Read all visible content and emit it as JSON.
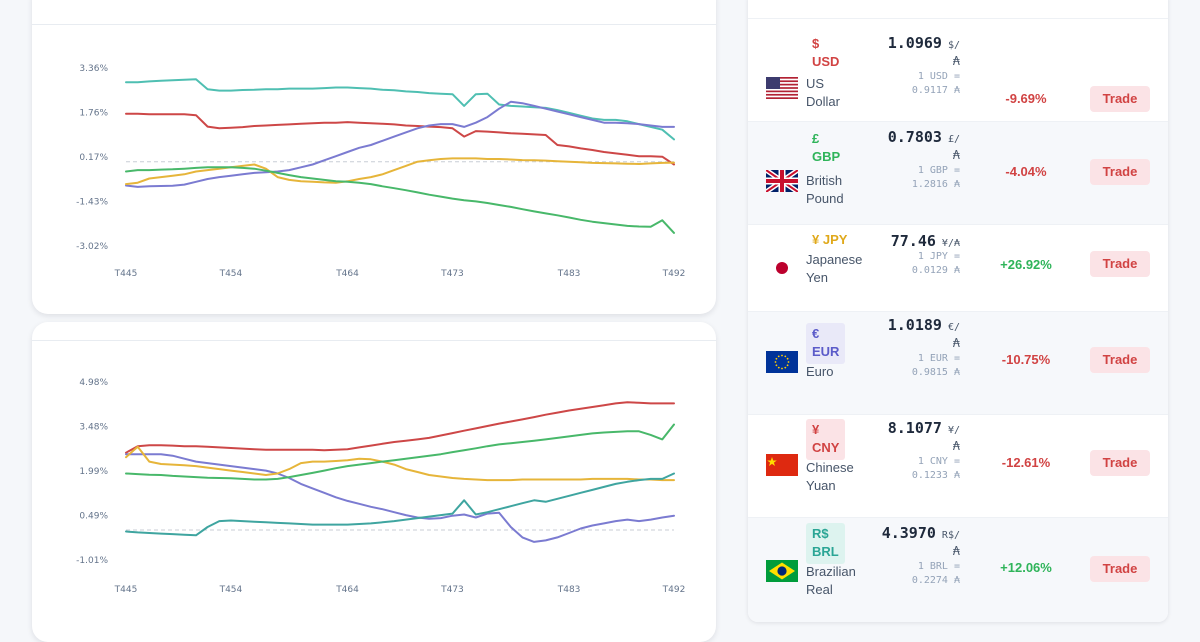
{
  "chart_data": [
    {
      "type": "line",
      "x_ticks": [
        "T445",
        "T454",
        "T464",
        "T473",
        "T483",
        "T492"
      ],
      "x": [
        445,
        446,
        447,
        448,
        449,
        450,
        451,
        452,
        453,
        454,
        455,
        456,
        457,
        458,
        459,
        460,
        461,
        462,
        463,
        464,
        465,
        466,
        467,
        468,
        469,
        470,
        471,
        472,
        473,
        474,
        475,
        476,
        477,
        478,
        479,
        480,
        481,
        482,
        483,
        484,
        485,
        486,
        487,
        488,
        489,
        490,
        491,
        492
      ],
      "y_ticks": [
        "3.36%",
        "1.76%",
        "0.17%",
        "-1.43%",
        "-3.02%"
      ],
      "ylim": [
        -3.02,
        3.36
      ],
      "baseline": 0.0,
      "series": [
        {
          "color": "#4fbfb2",
          "values": [
            2.85,
            2.85,
            2.88,
            2.9,
            2.92,
            2.94,
            2.96,
            2.6,
            2.55,
            2.55,
            2.57,
            2.58,
            2.6,
            2.6,
            2.62,
            2.62,
            2.62,
            2.64,
            2.66,
            2.66,
            2.64,
            2.62,
            2.58,
            2.56,
            2.52,
            2.5,
            2.46,
            2.44,
            2.42,
            2.0,
            2.42,
            2.44,
            2.05,
            2.0,
            1.98,
            1.95,
            1.93,
            1.85,
            1.75,
            1.65,
            1.55,
            1.5,
            1.5,
            1.45,
            1.35,
            1.25,
            1.15,
            0.8
          ]
        },
        {
          "color": "#cd4747",
          "values": [
            1.72,
            1.72,
            1.7,
            1.7,
            1.7,
            1.7,
            1.67,
            1.26,
            1.2,
            1.22,
            1.24,
            1.28,
            1.3,
            1.32,
            1.34,
            1.36,
            1.38,
            1.4,
            1.4,
            1.42,
            1.4,
            1.38,
            1.36,
            1.34,
            1.3,
            1.28,
            1.26,
            1.24,
            1.2,
            0.9,
            1.1,
            1.08,
            1.05,
            1.02,
            1.0,
            0.98,
            0.96,
            0.6,
            0.55,
            0.48,
            0.42,
            0.35,
            0.3,
            0.25,
            0.2,
            0.2,
            0.18,
            -0.1
          ]
        },
        {
          "color": "#7b7bd1",
          "values": [
            -0.85,
            -0.9,
            -0.88,
            -0.87,
            -0.86,
            -0.82,
            -0.72,
            -0.62,
            -0.55,
            -0.5,
            -0.45,
            -0.4,
            -0.38,
            -0.35,
            -0.3,
            -0.2,
            -0.1,
            0.05,
            0.2,
            0.35,
            0.5,
            0.6,
            0.75,
            0.9,
            1.05,
            1.2,
            1.3,
            1.35,
            1.35,
            1.25,
            1.4,
            1.6,
            1.9,
            2.15,
            2.1,
            2.0,
            1.9,
            1.8,
            1.7,
            1.6,
            1.5,
            1.4,
            1.4,
            1.38,
            1.35,
            1.3,
            1.25,
            1.25
          ]
        },
        {
          "color": "#e6b53a",
          "values": [
            -0.8,
            -0.75,
            -0.6,
            -0.55,
            -0.5,
            -0.45,
            -0.35,
            -0.3,
            -0.25,
            -0.2,
            -0.15,
            -0.1,
            -0.25,
            -0.55,
            -0.65,
            -0.7,
            -0.72,
            -0.74,
            -0.75,
            -0.7,
            -0.62,
            -0.55,
            -0.45,
            -0.3,
            -0.15,
            0.0,
            0.05,
            0.1,
            0.12,
            0.12,
            0.12,
            0.1,
            0.1,
            0.08,
            0.06,
            0.05,
            0.04,
            0.02,
            0.0,
            -0.02,
            -0.04,
            -0.05,
            -0.06,
            -0.07,
            -0.08,
            -0.06,
            -0.04,
            -0.03
          ]
        },
        {
          "color": "#48b86a",
          "values": [
            -0.35,
            -0.3,
            -0.3,
            -0.28,
            -0.27,
            -0.25,
            -0.22,
            -0.2,
            -0.2,
            -0.2,
            -0.22,
            -0.25,
            -0.32,
            -0.4,
            -0.48,
            -0.55,
            -0.6,
            -0.65,
            -0.7,
            -0.72,
            -0.75,
            -0.8,
            -0.88,
            -0.95,
            -1.02,
            -1.1,
            -1.18,
            -1.25,
            -1.32,
            -1.38,
            -1.42,
            -1.48,
            -1.55,
            -1.62,
            -1.7,
            -1.78,
            -1.85,
            -1.92,
            -2.0,
            -2.08,
            -2.15,
            -2.2,
            -2.25,
            -2.3,
            -2.32,
            -2.33,
            -2.1,
            -2.55
          ]
        }
      ]
    },
    {
      "type": "line",
      "x_ticks": [
        "T445",
        "T454",
        "T464",
        "T473",
        "T483",
        "T492"
      ],
      "x": [
        445,
        446,
        447,
        448,
        449,
        450,
        451,
        452,
        453,
        454,
        455,
        456,
        457,
        458,
        459,
        460,
        461,
        462,
        463,
        464,
        465,
        466,
        467,
        468,
        469,
        470,
        471,
        472,
        473,
        474,
        475,
        476,
        477,
        478,
        479,
        480,
        481,
        482,
        483,
        484,
        485,
        486,
        487,
        488,
        489,
        490,
        491,
        492
      ],
      "y_ticks": [
        "4.98%",
        "3.48%",
        "1.99%",
        "0.49%",
        "-1.01%"
      ],
      "ylim": [
        -1.01,
        4.98
      ],
      "baseline": 0.0,
      "series": [
        {
          "color": "#cd4747",
          "values": [
            2.6,
            2.82,
            2.85,
            2.85,
            2.84,
            2.82,
            2.82,
            2.8,
            2.78,
            2.76,
            2.74,
            2.72,
            2.7,
            2.7,
            2.7,
            2.7,
            2.7,
            2.68,
            2.7,
            2.72,
            2.78,
            2.84,
            2.9,
            2.96,
            3.0,
            3.05,
            3.1,
            3.18,
            3.26,
            3.34,
            3.42,
            3.5,
            3.58,
            3.65,
            3.72,
            3.8,
            3.88,
            3.95,
            4.02,
            4.08,
            4.14,
            4.2,
            4.26,
            4.3,
            4.28,
            4.26,
            4.26,
            4.26
          ]
        },
        {
          "color": "#7b7bd1",
          "values": [
            2.55,
            2.55,
            2.55,
            2.55,
            2.5,
            2.4,
            2.3,
            2.25,
            2.2,
            2.15,
            2.1,
            2.05,
            2.0,
            1.9,
            1.75,
            1.55,
            1.4,
            1.25,
            1.1,
            0.98,
            0.88,
            0.78,
            0.7,
            0.6,
            0.5,
            0.42,
            0.38,
            0.4,
            0.48,
            0.52,
            0.42,
            0.55,
            0.58,
            0.1,
            -0.25,
            -0.4,
            -0.35,
            -0.25,
            -0.1,
            0.05,
            0.15,
            0.22,
            0.3,
            0.35,
            0.3,
            0.35,
            0.42,
            0.48
          ]
        },
        {
          "color": "#e6b53a",
          "values": [
            2.45,
            2.8,
            2.3,
            2.22,
            2.2,
            2.18,
            2.15,
            2.1,
            2.05,
            2.0,
            1.95,
            1.9,
            1.85,
            1.9,
            2.05,
            2.25,
            2.3,
            2.3,
            2.32,
            2.35,
            2.4,
            2.38,
            2.3,
            2.2,
            2.05,
            1.95,
            1.85,
            1.8,
            1.75,
            1.72,
            1.7,
            1.68,
            1.68,
            1.68,
            1.7,
            1.7,
            1.7,
            1.7,
            1.7,
            1.7,
            1.72,
            1.72,
            1.72,
            1.72,
            1.7,
            1.7,
            1.68,
            1.68
          ]
        },
        {
          "color": "#48b86a",
          "values": [
            1.9,
            1.88,
            1.86,
            1.85,
            1.82,
            1.8,
            1.78,
            1.76,
            1.75,
            1.74,
            1.72,
            1.7,
            1.7,
            1.72,
            1.78,
            1.85,
            1.92,
            2.0,
            2.08,
            2.15,
            2.2,
            2.25,
            2.3,
            2.35,
            2.4,
            2.45,
            2.5,
            2.55,
            2.62,
            2.68,
            2.75,
            2.82,
            2.88,
            2.92,
            2.96,
            3.0,
            3.05,
            3.1,
            3.15,
            3.2,
            3.25,
            3.28,
            3.3,
            3.32,
            3.32,
            3.2,
            3.05,
            3.55
          ]
        },
        {
          "color": "#3fa5a0",
          "values": [
            -0.05,
            -0.08,
            -0.1,
            -0.12,
            -0.14,
            -0.16,
            -0.18,
            0.1,
            0.3,
            0.32,
            0.3,
            0.28,
            0.26,
            0.24,
            0.22,
            0.2,
            0.18,
            0.18,
            0.18,
            0.18,
            0.2,
            0.22,
            0.26,
            0.3,
            0.35,
            0.4,
            0.45,
            0.5,
            0.55,
            1.0,
            0.52,
            0.6,
            0.7,
            0.8,
            0.9,
            1.0,
            0.95,
            1.05,
            1.15,
            1.25,
            1.35,
            1.45,
            1.55,
            1.62,
            1.68,
            1.72,
            1.72,
            1.9
          ]
        }
      ]
    }
  ],
  "currencies": [
    {
      "symbol": "$",
      "code": "USD",
      "name1": "US",
      "name2": "Dollar",
      "rate": "1.0969",
      "unit": "$/",
      "unit2": "₳",
      "conv1": "1 USD =",
      "conv2": "0.9117 ₳",
      "change": "-9.69%",
      "trade": "Trade",
      "code_color": "#d14343",
      "badge_bg": "#ffffff",
      "change_color": "#d14343",
      "flag": "us"
    },
    {
      "symbol": "£",
      "code": "GBP",
      "name1": "British",
      "name2": "Pound",
      "rate": "0.7803",
      "unit": "£/",
      "unit2": "₳",
      "conv1": "1 GBP =",
      "conv2": "1.2816 ₳",
      "change": "-4.04%",
      "trade": "Trade",
      "code_color": "#2fb45a",
      "badge_bg": "#f6f8fb",
      "change_color": "#d14343",
      "flag": "gb"
    },
    {
      "symbol": "¥",
      "code": "JPY",
      "name1": "Japanese",
      "name2": "Yen",
      "rate": "77.46",
      "unit": "¥/₳",
      "unit2": "",
      "conv1": "1 JPY =",
      "conv2": "0.0129 ₳",
      "change": "+26.92%",
      "trade": "Trade",
      "code_color": "#e0a91b",
      "badge_bg": "#ffffff",
      "change_color": "#2fb45a",
      "flag": "jp"
    },
    {
      "symbol": "€",
      "code": "EUR",
      "name1": "Euro",
      "name2": "",
      "rate": "1.0189",
      "unit": "€/",
      "unit2": "₳",
      "conv1": "1 EUR =",
      "conv2": "0.9815 ₳",
      "change": "-10.75%",
      "trade": "Trade",
      "code_color": "#5b5bc9",
      "badge_bg": "#e9e9f8",
      "change_color": "#d14343",
      "flag": "eu"
    },
    {
      "symbol": "¥",
      "code": "CNY",
      "name1": "Chinese",
      "name2": "Yuan",
      "rate": "8.1077",
      "unit": "¥/",
      "unit2": "₳",
      "conv1": "1 CNY =",
      "conv2": "0.1233 ₳",
      "change": "-12.61%",
      "trade": "Trade",
      "code_color": "#d14343",
      "badge_bg": "#fbe3e6",
      "change_color": "#d14343",
      "flag": "cn"
    },
    {
      "symbol": "R$",
      "code": "BRL",
      "name1": "Brazilian",
      "name2": "Real",
      "rate": "4.3970",
      "unit": "R$/",
      "unit2": "₳",
      "conv1": "1 BRL =",
      "conv2": "0.2274 ₳",
      "change": "+12.06%",
      "trade": "Trade",
      "code_color": "#2aa595",
      "badge_bg": "#ddf3ef",
      "change_color": "#2fb45a",
      "flag": "br"
    }
  ]
}
